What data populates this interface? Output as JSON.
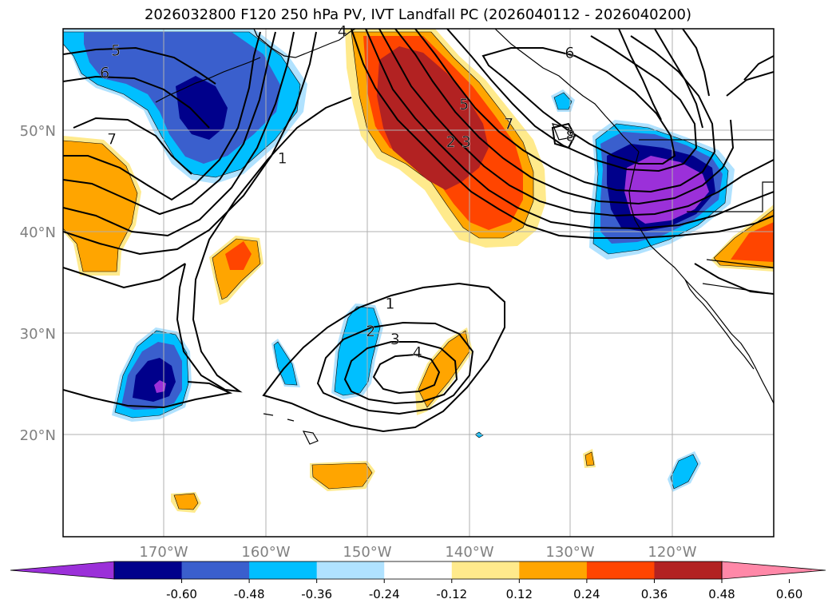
{
  "title": "2026032800 F120 250 hPa PV, IVT Landfall PC (2026040112 - 2026040200)",
  "map": {
    "lon_range": [
      -180,
      -110
    ],
    "lat_range": [
      10,
      60
    ],
    "lat_labels": [
      "20°N",
      "30°N",
      "40°N",
      "50°N"
    ],
    "lon_labels": [
      "170°W",
      "160°W",
      "150°W",
      "140°W",
      "130°W",
      "120°W"
    ],
    "colors": {
      "purple": "#9b30d9",
      "navy": "#00008b",
      "royal": "#3a5fcd",
      "sky": "#00bfff",
      "pale_blue": "#b0e2ff",
      "pale_yellow": "#ffea8c",
      "orange": "#ffa500",
      "orange_red": "#ff4500",
      "brick": "#b22222",
      "pink": "#ff88a8"
    }
  },
  "contour_labels": [
    {
      "text": "5",
      "lon": -174.8,
      "lat": 57.9
    },
    {
      "text": "6",
      "lon": -175.9,
      "lat": 55.7
    },
    {
      "text": "7",
      "lon": -175.2,
      "lat": 49.2
    },
    {
      "text": "1",
      "lon": -158.4,
      "lat": 47.3
    },
    {
      "text": "4",
      "lon": -152.5,
      "lat": 59.8
    },
    {
      "text": "5",
      "lon": -140.5,
      "lat": 52.6
    },
    {
      "text": "2",
      "lon": -141.8,
      "lat": 48.9
    },
    {
      "text": "3",
      "lon": -140.3,
      "lat": 48.9
    },
    {
      "text": "7",
      "lon": -136.1,
      "lat": 50.7
    },
    {
      "text": "6",
      "lon": -130.1,
      "lat": 57.7
    },
    {
      "text": "8",
      "lon": -130.0,
      "lat": 49.5
    },
    {
      "text": "1",
      "lon": -147.8,
      "lat": 33.0
    },
    {
      "text": "2",
      "lon": -149.7,
      "lat": 30.3
    },
    {
      "text": "3",
      "lon": -147.3,
      "lat": 29.5
    },
    {
      "text": "4",
      "lon": -145.1,
      "lat": 28.2
    }
  ],
  "colorbar": {
    "ticks": [
      "-0.60",
      "-0.48",
      "-0.36",
      "-0.24",
      "-0.12",
      "0.12",
      "0.24",
      "0.36",
      "0.48",
      "0.60"
    ],
    "colors": [
      "#9b30d9",
      "#00008b",
      "#3a5fcd",
      "#00bfff",
      "#b0e2ff",
      "#ffffff",
      "#ffea8c",
      "#ffa500",
      "#ff4500",
      "#b22222",
      "#ff88a8"
    ]
  }
}
